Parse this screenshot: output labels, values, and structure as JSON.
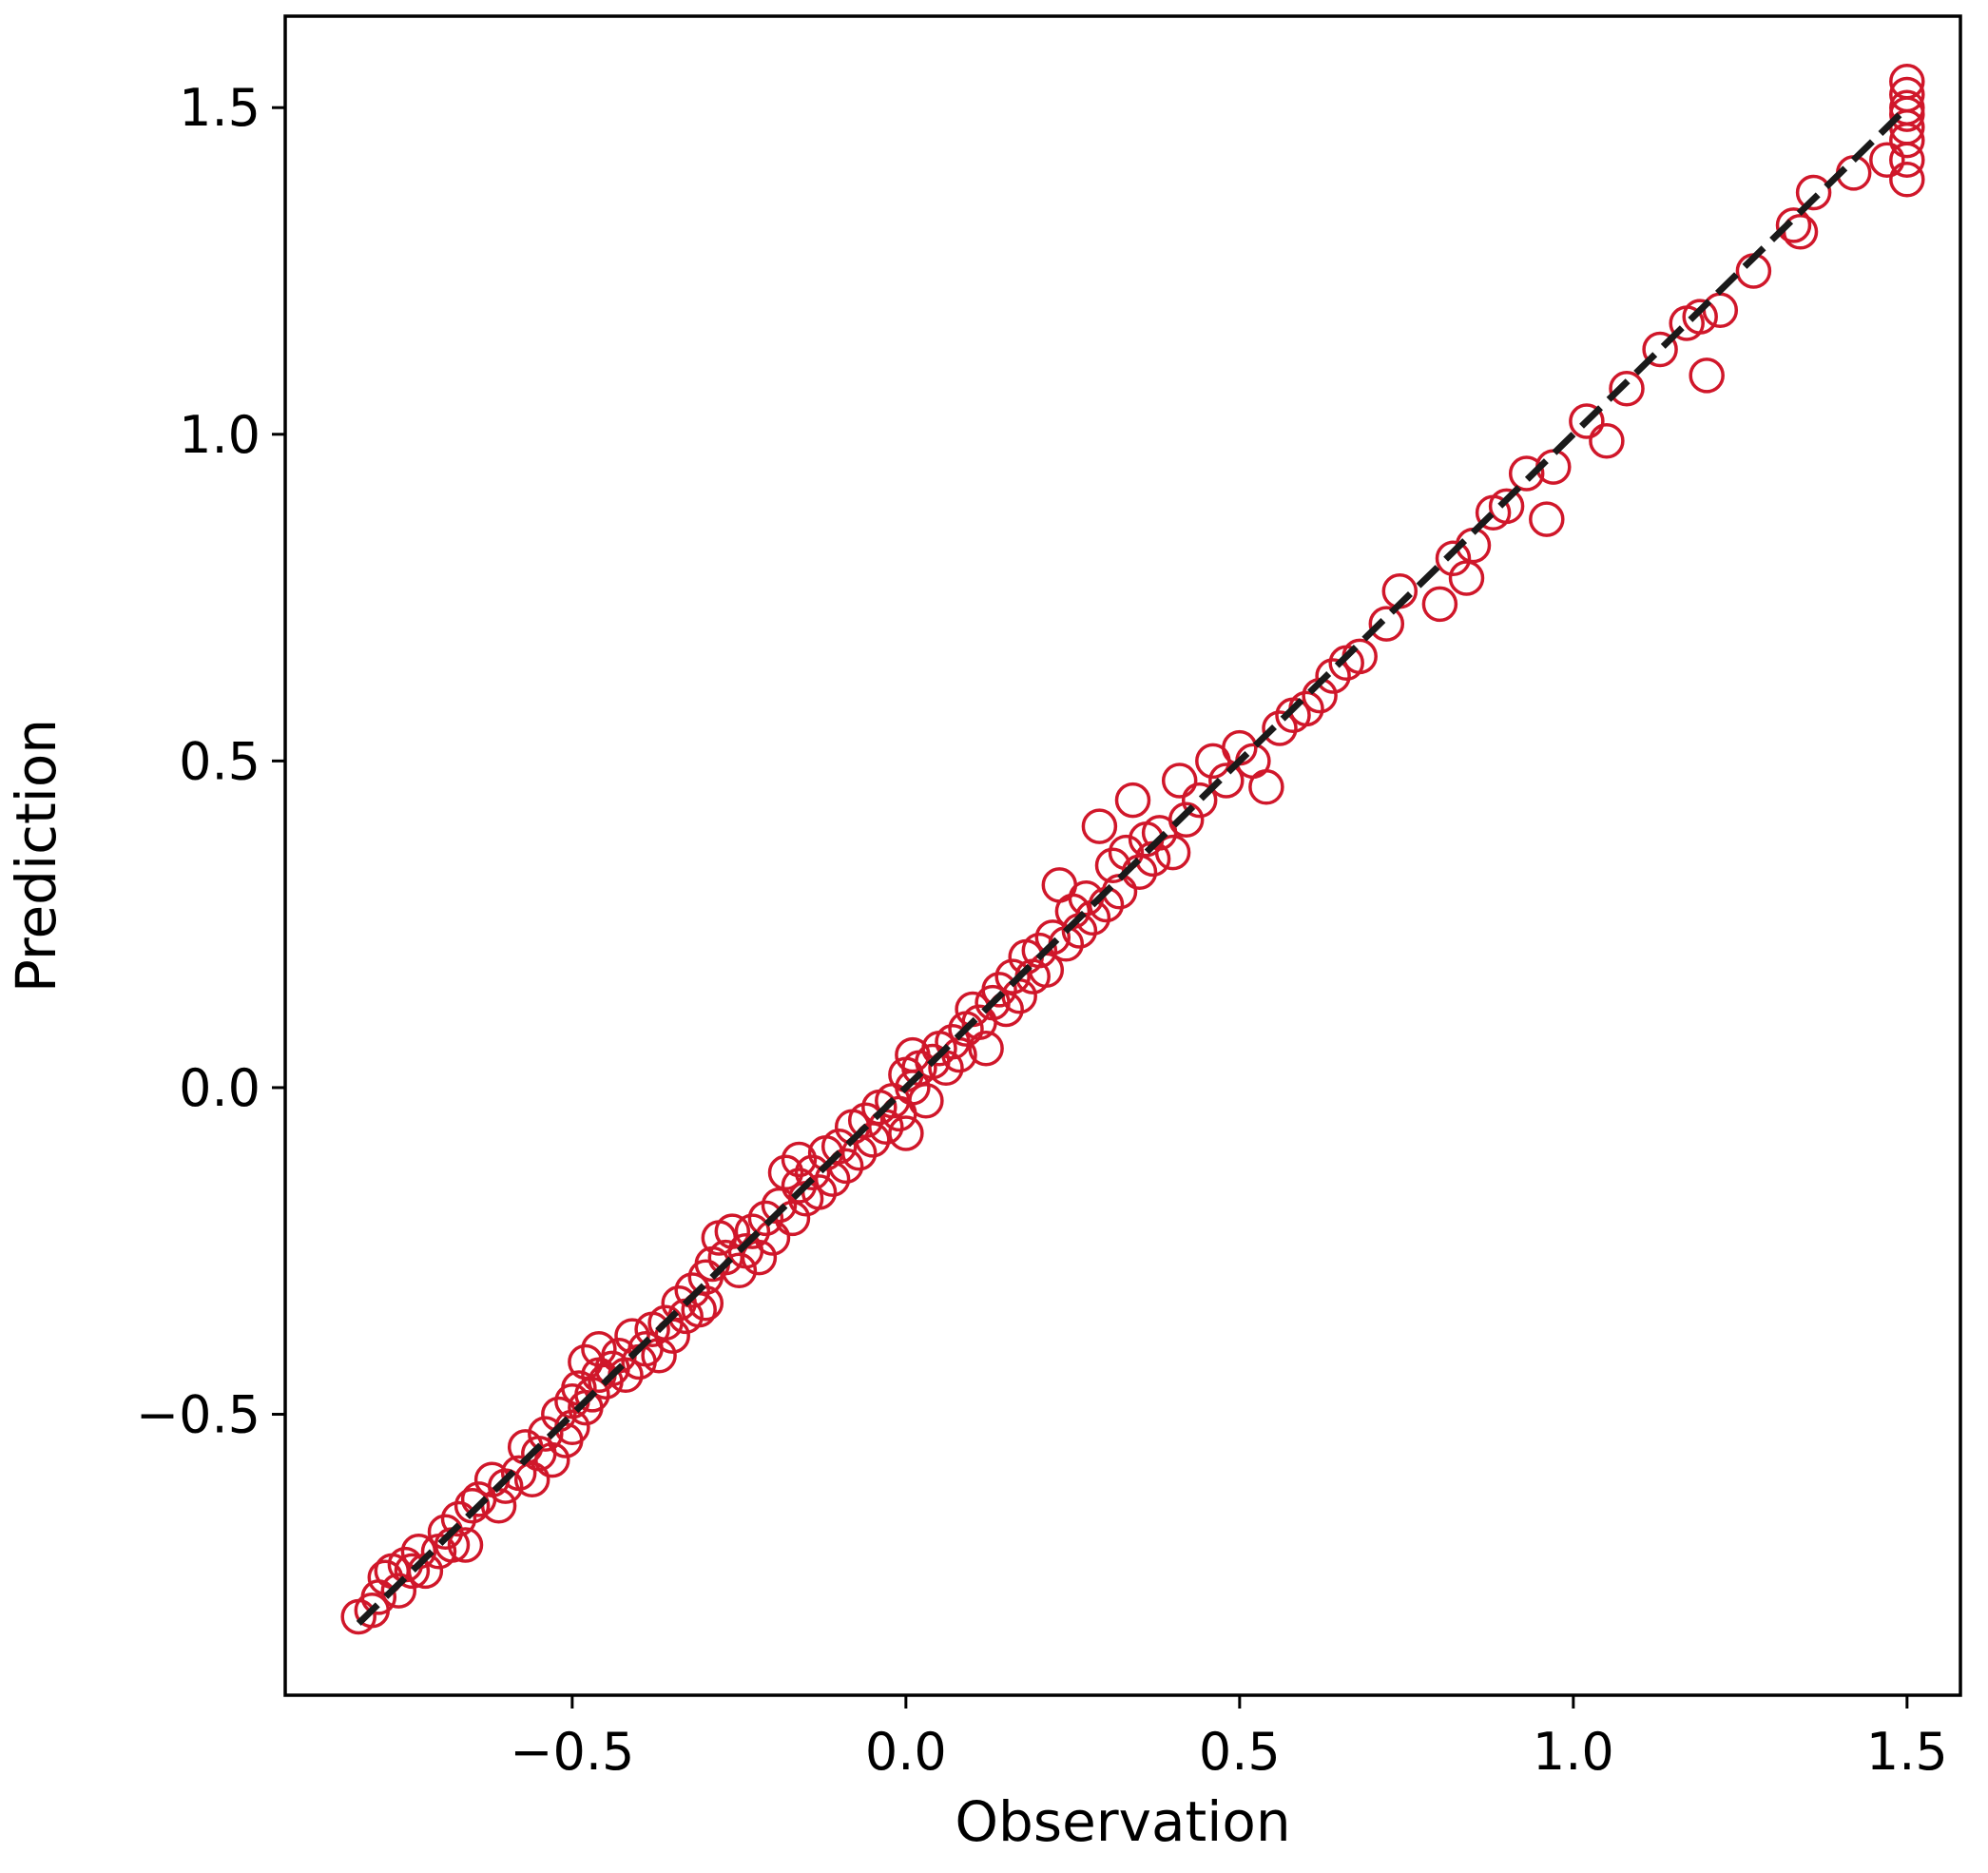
{
  "chart_data": {
    "type": "scatter",
    "title": "",
    "xlabel": "Observation",
    "ylabel": "Prediction",
    "xlim": [
      -0.93,
      1.58
    ],
    "ylim": [
      -0.93,
      1.64
    ],
    "xticks": [
      -0.5,
      0.0,
      0.5,
      1.0,
      1.5
    ],
    "xtick_labels": [
      "−0.5",
      "0.0",
      "0.5",
      "1.0",
      "1.5"
    ],
    "yticks": [
      -0.5,
      0.0,
      0.5,
      1.0,
      1.5
    ],
    "ytick_labels": [
      "−0.5",
      "0.0",
      "0.5",
      "1.0",
      "1.5"
    ],
    "grid": false,
    "marker": "open-circle",
    "colors": {
      "points": "#d0172a",
      "reference_line": "#1a1a1a",
      "frame": "#000000"
    },
    "reference_line": {
      "style": "dashed",
      "from": [
        -0.82,
        -0.82
      ],
      "to": [
        1.5,
        1.5
      ]
    },
    "series": [
      {
        "points": [
          [
            -0.82,
            -0.81
          ],
          [
            -0.8,
            -0.8
          ],
          [
            -0.79,
            -0.78
          ],
          [
            -0.78,
            -0.75
          ],
          [
            -0.77,
            -0.74
          ],
          [
            -0.76,
            -0.77
          ],
          [
            -0.75,
            -0.73
          ],
          [
            -0.74,
            -0.74
          ],
          [
            -0.73,
            -0.71
          ],
          [
            -0.72,
            -0.74
          ],
          [
            -0.7,
            -0.71
          ],
          [
            -0.69,
            -0.68
          ],
          [
            -0.68,
            -0.7
          ],
          [
            -0.67,
            -0.66
          ],
          [
            -0.66,
            -0.7
          ],
          [
            -0.65,
            -0.64
          ],
          [
            -0.64,
            -0.63
          ],
          [
            -0.62,
            -0.6
          ],
          [
            -0.61,
            -0.64
          ],
          [
            -0.6,
            -0.61
          ],
          [
            -0.58,
            -0.59
          ],
          [
            -0.57,
            -0.55
          ],
          [
            -0.56,
            -0.6
          ],
          [
            -0.55,
            -0.56
          ],
          [
            -0.54,
            -0.53
          ],
          [
            -0.53,
            -0.57
          ],
          [
            -0.52,
            -0.5
          ],
          [
            -0.51,
            -0.54
          ],
          [
            -0.5,
            -0.48
          ],
          [
            -0.5,
            -0.52
          ],
          [
            -0.49,
            -0.46
          ],
          [
            -0.48,
            -0.49
          ],
          [
            -0.48,
            -0.42
          ],
          [
            -0.47,
            -0.47
          ],
          [
            -0.46,
            -0.44
          ],
          [
            -0.46,
            -0.4
          ],
          [
            -0.45,
            -0.45
          ],
          [
            -0.44,
            -0.43
          ],
          [
            -0.43,
            -0.41
          ],
          [
            -0.42,
            -0.44
          ],
          [
            -0.41,
            -0.38
          ],
          [
            -0.4,
            -0.42
          ],
          [
            -0.39,
            -0.4
          ],
          [
            -0.38,
            -0.37
          ],
          [
            -0.37,
            -0.41
          ],
          [
            -0.36,
            -0.36
          ],
          [
            -0.35,
            -0.38
          ],
          [
            -0.34,
            -0.33
          ],
          [
            -0.33,
            -0.35
          ],
          [
            -0.32,
            -0.31
          ],
          [
            -0.31,
            -0.34
          ],
          [
            -0.3,
            -0.29
          ],
          [
            -0.3,
            -0.33
          ],
          [
            -0.29,
            -0.27
          ],
          [
            -0.28,
            -0.23
          ],
          [
            -0.27,
            -0.26
          ],
          [
            -0.26,
            -0.22
          ],
          [
            -0.25,
            -0.28
          ],
          [
            -0.24,
            -0.25
          ],
          [
            -0.23,
            -0.22
          ],
          [
            -0.22,
            -0.26
          ],
          [
            -0.21,
            -0.2
          ],
          [
            -0.2,
            -0.23
          ],
          [
            -0.19,
            -0.18
          ],
          [
            -0.18,
            -0.13
          ],
          [
            -0.17,
            -0.2
          ],
          [
            -0.16,
            -0.15
          ],
          [
            -0.16,
            -0.11
          ],
          [
            -0.15,
            -0.17
          ],
          [
            -0.14,
            -0.13
          ],
          [
            -0.13,
            -0.16
          ],
          [
            -0.12,
            -0.1
          ],
          [
            -0.11,
            -0.14
          ],
          [
            -0.1,
            -0.09
          ],
          [
            -0.09,
            -0.12
          ],
          [
            -0.08,
            -0.06
          ],
          [
            -0.07,
            -0.1
          ],
          [
            -0.06,
            -0.05
          ],
          [
            -0.05,
            -0.08
          ],
          [
            -0.04,
            -0.03
          ],
          [
            -0.03,
            -0.06
          ],
          [
            -0.02,
            -0.02
          ],
          [
            -0.01,
            -0.04
          ],
          [
            0.0,
            0.02
          ],
          [
            0.0,
            -0.07
          ],
          [
            0.01,
            0.0
          ],
          [
            0.01,
            0.05
          ],
          [
            0.02,
            0.03
          ],
          [
            0.03,
            -0.02
          ],
          [
            0.04,
            0.04
          ],
          [
            0.05,
            0.06
          ],
          [
            0.06,
            0.03
          ],
          [
            0.07,
            0.07
          ],
          [
            0.08,
            0.05
          ],
          [
            0.09,
            0.09
          ],
          [
            0.1,
            0.12
          ],
          [
            0.11,
            0.1
          ],
          [
            0.12,
            0.06
          ],
          [
            0.13,
            0.13
          ],
          [
            0.14,
            0.15
          ],
          [
            0.15,
            0.12
          ],
          [
            0.16,
            0.17
          ],
          [
            0.17,
            0.14
          ],
          [
            0.18,
            0.2
          ],
          [
            0.19,
            0.17
          ],
          [
            0.2,
            0.21
          ],
          [
            0.21,
            0.18
          ],
          [
            0.22,
            0.23
          ],
          [
            0.23,
            0.31
          ],
          [
            0.24,
            0.22
          ],
          [
            0.25,
            0.27
          ],
          [
            0.26,
            0.24
          ],
          [
            0.27,
            0.29
          ],
          [
            0.28,
            0.26
          ],
          [
            0.29,
            0.4
          ],
          [
            0.3,
            0.28
          ],
          [
            0.31,
            0.34
          ],
          [
            0.32,
            0.3
          ],
          [
            0.33,
            0.36
          ],
          [
            0.34,
            0.44
          ],
          [
            0.35,
            0.33
          ],
          [
            0.36,
            0.38
          ],
          [
            0.37,
            0.35
          ],
          [
            0.38,
            0.39
          ],
          [
            0.4,
            0.36
          ],
          [
            0.41,
            0.47
          ],
          [
            0.42,
            0.41
          ],
          [
            0.44,
            0.44
          ],
          [
            0.46,
            0.5
          ],
          [
            0.48,
            0.47
          ],
          [
            0.5,
            0.52
          ],
          [
            0.52,
            0.5
          ],
          [
            0.54,
            0.46
          ],
          [
            0.56,
            0.55
          ],
          [
            0.58,
            0.57
          ],
          [
            0.6,
            0.58
          ],
          [
            0.62,
            0.6
          ],
          [
            0.64,
            0.63
          ],
          [
            0.66,
            0.65
          ],
          [
            0.68,
            0.66
          ],
          [
            0.72,
            0.71
          ],
          [
            0.74,
            0.76
          ],
          [
            0.8,
            0.74
          ],
          [
            0.82,
            0.81
          ],
          [
            0.84,
            0.78
          ],
          [
            0.85,
            0.83
          ],
          [
            0.88,
            0.88
          ],
          [
            0.9,
            0.89
          ],
          [
            0.93,
            0.94
          ],
          [
            0.96,
            0.87
          ],
          [
            0.97,
            0.95
          ],
          [
            1.02,
            1.02
          ],
          [
            1.05,
            0.99
          ],
          [
            1.08,
            1.07
          ],
          [
            1.13,
            1.13
          ],
          [
            1.17,
            1.17
          ],
          [
            1.19,
            1.18
          ],
          [
            1.2,
            1.09
          ],
          [
            1.22,
            1.19
          ],
          [
            1.27,
            1.25
          ],
          [
            1.33,
            1.32
          ],
          [
            1.34,
            1.31
          ],
          [
            1.36,
            1.37
          ],
          [
            1.42,
            1.4
          ],
          [
            1.47,
            1.42
          ],
          [
            1.5,
            1.39
          ],
          [
            1.5,
            1.42
          ],
          [
            1.5,
            1.45
          ],
          [
            1.5,
            1.47
          ],
          [
            1.5,
            1.49
          ],
          [
            1.5,
            1.5
          ],
          [
            1.5,
            1.52
          ],
          [
            1.5,
            1.54
          ]
        ]
      }
    ]
  }
}
